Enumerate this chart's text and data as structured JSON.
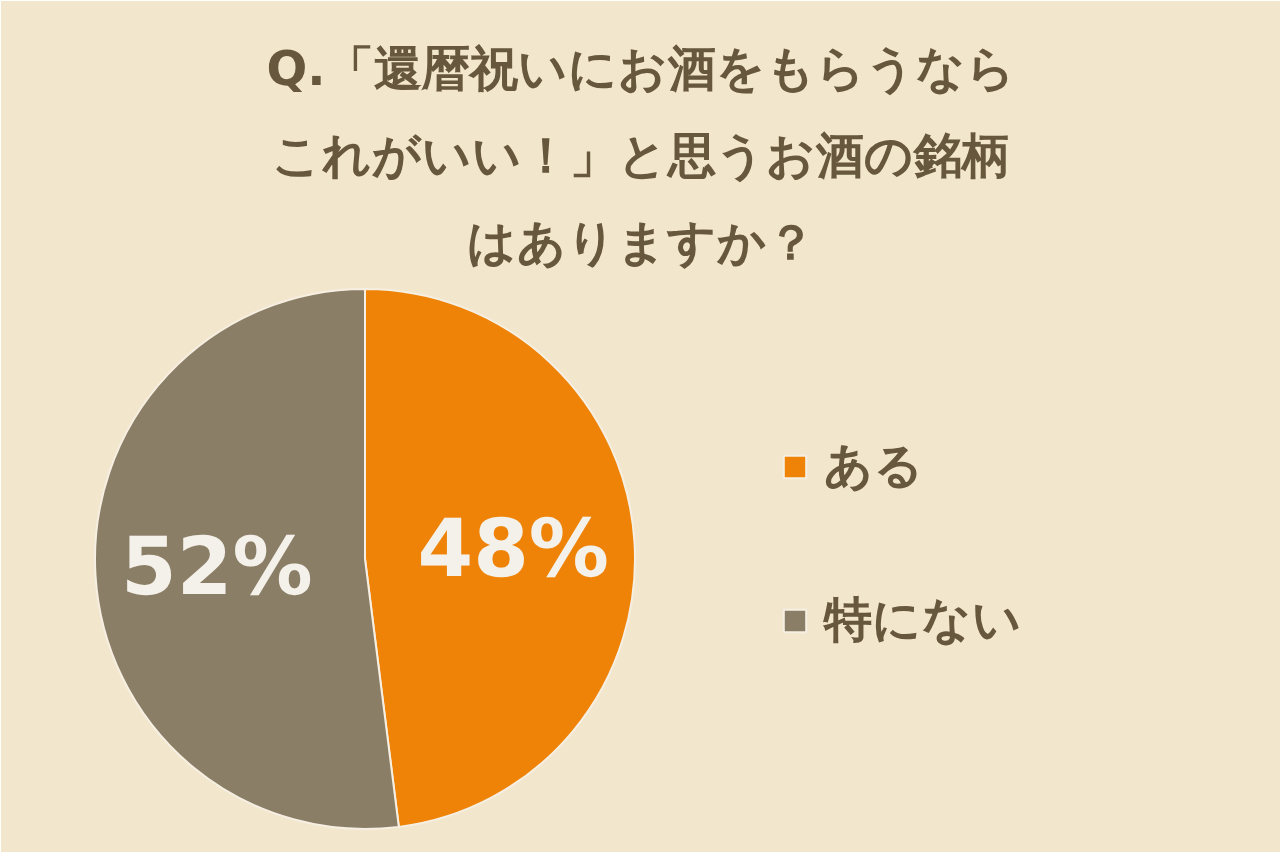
{
  "chart_data": {
    "type": "pie",
    "title": "Q.「還暦祝いにお酒をもらうならこれがいい！」と思うお酒の銘柄はありますか？",
    "categories": [
      "ある",
      "特にない"
    ],
    "values": [
      48,
      52
    ],
    "colors": [
      "#ee8307",
      "#8b7e66"
    ],
    "value_labels": [
      "48%",
      "52%"
    ],
    "legend": "right"
  }
}
